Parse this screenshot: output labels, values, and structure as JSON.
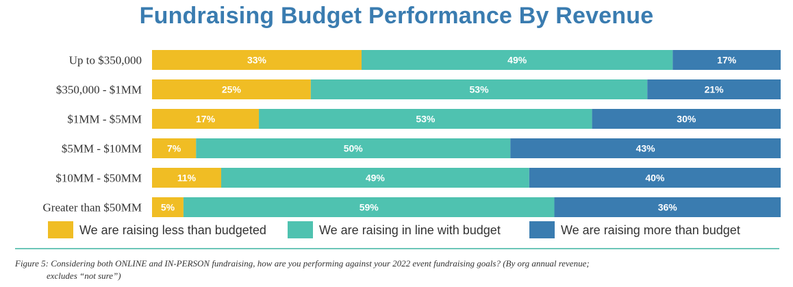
{
  "chart_data": {
    "type": "bar",
    "orientation": "horizontal",
    "stacked": true,
    "title": "Fundraising Budget Performance By Revenue",
    "categories": [
      "Up to $350,000",
      "$350,000 - $1MM",
      "$1MM - $5MM",
      "$5MM - $10MM",
      "$10MM - $50MM",
      "Greater than $50MM"
    ],
    "series": [
      {
        "name": "We are raising less than budgeted",
        "color": "#f0bd24",
        "values": [
          33,
          25,
          17,
          7,
          11,
          5
        ]
      },
      {
        "name": "We are raising in line with budget",
        "color": "#4fc2b0",
        "values": [
          49,
          53,
          53,
          50,
          49,
          59
        ]
      },
      {
        "name": "We are raising more than budget",
        "color": "#3a7cb0",
        "values": [
          17,
          21,
          30,
          43,
          40,
          36
        ]
      }
    ],
    "value_suffix": "%",
    "legend_position": "bottom",
    "grid": false
  },
  "caption": {
    "line1": "Figure 5: Considering both ONLINE and IN-PERSON fundraising, how are you performing against your 2022 event fundraising goals? (By org annual revenue;",
    "line2": "excludes “not sure”)"
  }
}
